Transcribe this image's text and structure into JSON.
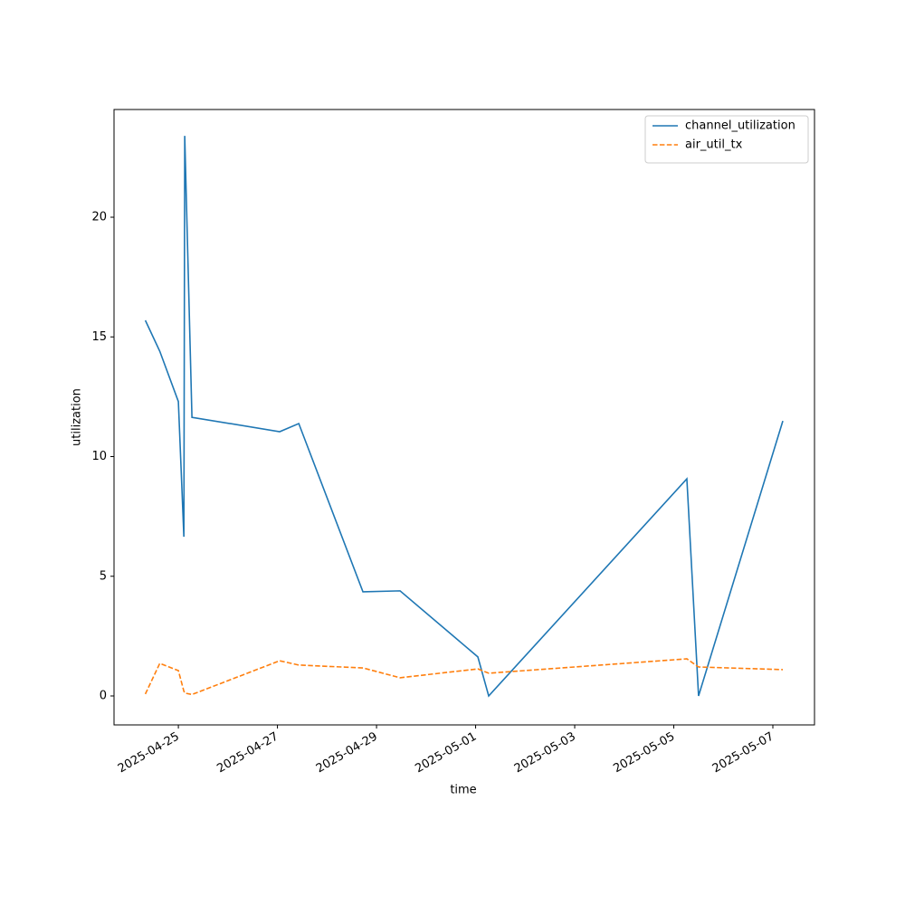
{
  "chart_data": {
    "type": "line",
    "x_label": "time",
    "y_label": "utilization",
    "x": [
      "2025-04-24T08:00",
      "2025-04-24T15:00",
      "2025-04-25T00:00",
      "2025-04-25T02:40",
      "2025-04-25T03:05",
      "2025-04-25T06:35",
      "2025-04-27T01:05",
      "2025-04-27T10:20",
      "2025-04-28T17:25",
      "2025-04-29T11:25",
      "2025-05-01T01:05",
      "2025-05-01T06:20",
      "2025-05-05T06:20",
      "2025-05-05T12:00",
      "2025-05-07T04:50"
    ],
    "series": [
      {
        "name": "channel_utilization",
        "color": "#1f77b4",
        "dash": false,
        "values": [
          15.69,
          14.4,
          12.3,
          6.65,
          23.4,
          11.64,
          11.04,
          11.38,
          4.35,
          4.39,
          1.63,
          0,
          9.07,
          0,
          11.49
        ]
      },
      {
        "name": "air_util_tx",
        "color": "#ff7f0e",
        "dash": true,
        "values": [
          0.08,
          1.36,
          1.06,
          0.2,
          0.12,
          0.06,
          1.47,
          1.29,
          1.17,
          0.76,
          1.13,
          0.95,
          1.55,
          1.21,
          1.1
        ]
      }
    ],
    "xlim": [
      "2025-04-23T16:50",
      "2025-05-07T20:10"
    ],
    "xticks": [
      "2025-04-25",
      "2025-04-27",
      "2025-04-29",
      "2025-05-01",
      "2025-05-03",
      "2025-05-05",
      "2025-05-07"
    ],
    "ylim": [
      -1.21,
      24.5
    ],
    "yticks": [
      0,
      5,
      10,
      15,
      20
    ],
    "grid": false,
    "legend": "upper-right"
  }
}
